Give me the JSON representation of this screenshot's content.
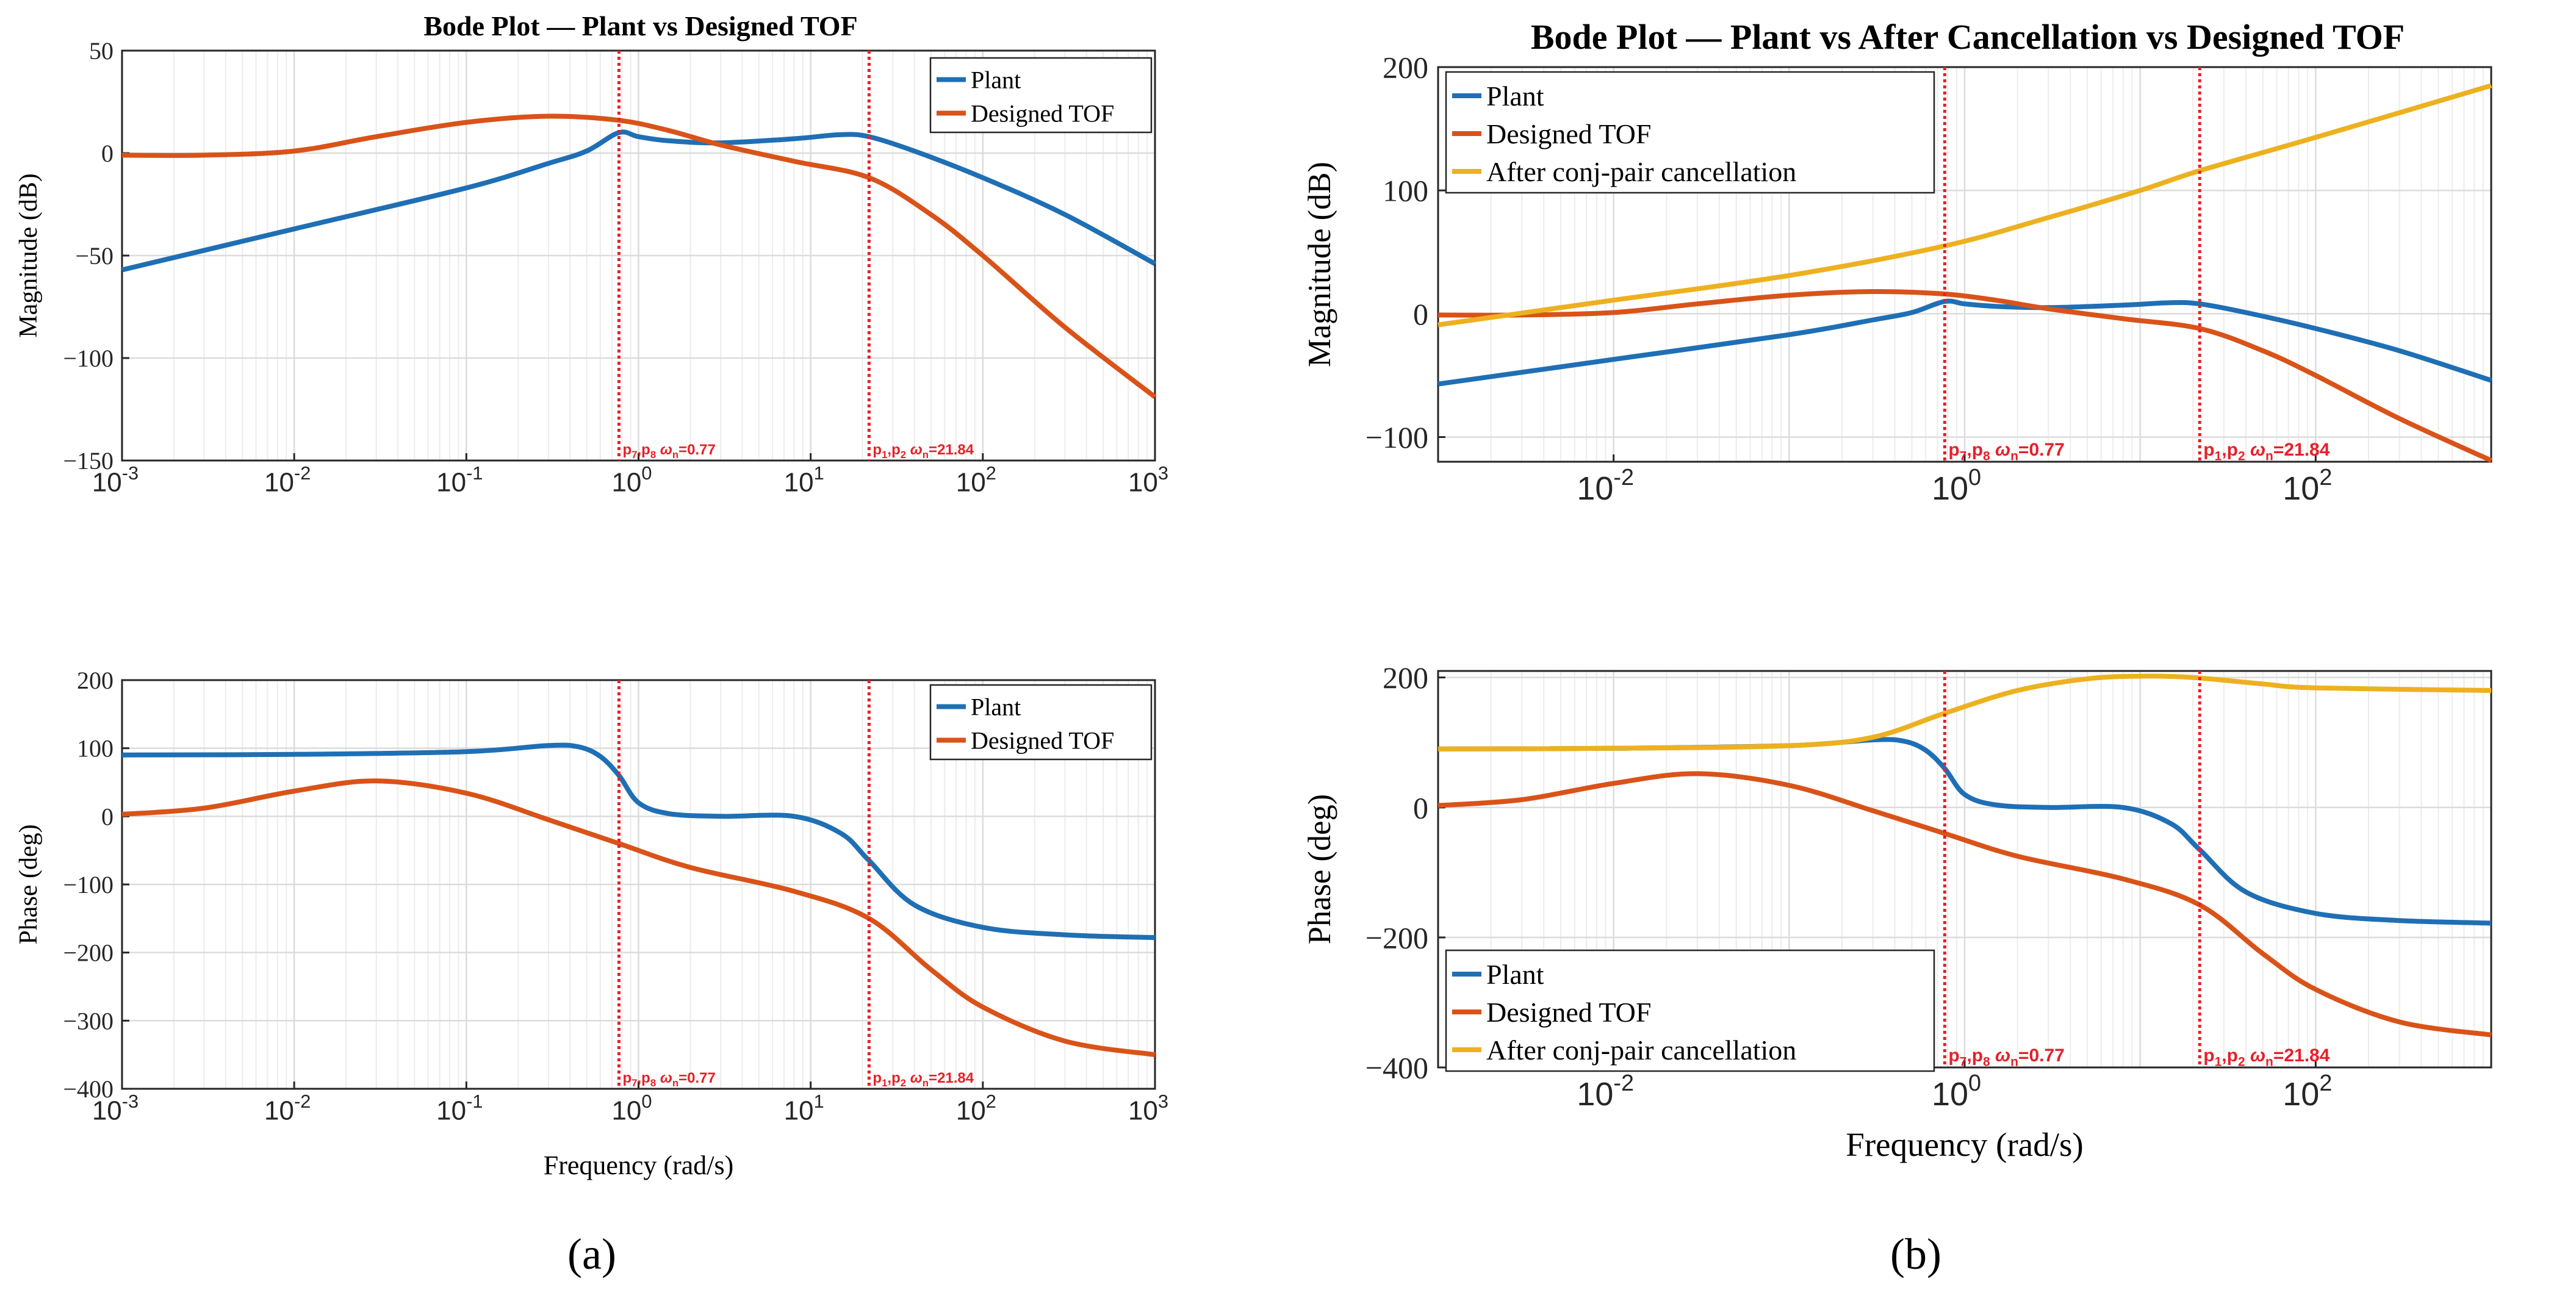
{
  "figure": {
    "label_a": "(a)",
    "label_b": "(b)"
  },
  "colors": {
    "plant": "#1f6fb5",
    "tof": "#d95319",
    "after": "#edb120",
    "marker": "#e8202a"
  },
  "chart_data": [
    {
      "id": "a_mag",
      "type": "line",
      "title": "Bode Plot — Plant vs Designed TOF",
      "xlabel": "",
      "ylabel": "Magnitude (dB)",
      "xscale": "log",
      "xlim": [
        0.001,
        1000
      ],
      "ylim": [
        -150,
        50
      ],
      "yticks": [
        50,
        0,
        -50,
        -100,
        -150
      ],
      "xticks": [
        "10^-3",
        "10^-2",
        "10^-1",
        "10^0",
        "10^1",
        "10^2",
        "10^3"
      ],
      "grid": true,
      "legend": "top-right",
      "markers": [
        {
          "x": 0.77,
          "label_sub": [
            "p",
            "7",
            ",p",
            "8",
            "  ω",
            "n",
            "=0.77"
          ]
        },
        {
          "x": 21.84,
          "label_sub": [
            "p",
            "1",
            ",p",
            "2",
            "  ω",
            "n",
            "=21.84"
          ]
        }
      ],
      "series": [
        {
          "name": "Plant",
          "color_key": "plant",
          "x": [
            0.001,
            0.01,
            0.1,
            0.3,
            0.5,
            0.77,
            1.0,
            1.5,
            3,
            8,
            15,
            21.84,
            40,
            100,
            300,
            1000
          ],
          "y": [
            -57,
            -37,
            -17,
            -5,
            1,
            10,
            8,
            6,
            5,
            7,
            9,
            8,
            1,
            -12,
            -30,
            -54
          ]
        },
        {
          "name": "Designed TOF",
          "color_key": "tof",
          "x": [
            0.001,
            0.003,
            0.01,
            0.03,
            0.1,
            0.3,
            0.77,
            1.5,
            3,
            8,
            21.84,
            50,
            100,
            300,
            1000
          ],
          "y": [
            -1,
            -1,
            1,
            8,
            15,
            18,
            16,
            11,
            4,
            -4,
            -12,
            -30,
            -50,
            -85,
            -119
          ]
        }
      ]
    },
    {
      "id": "a_phase",
      "type": "line",
      "title": "",
      "xlabel": "Frequency (rad/s)",
      "ylabel": "Phase (deg)",
      "xscale": "log",
      "xlim": [
        0.001,
        1000
      ],
      "ylim": [
        -400,
        200
      ],
      "yticks": [
        200,
        100,
        0,
        -100,
        -200,
        -300,
        -400
      ],
      "xticks": [
        "10^-3",
        "10^-2",
        "10^-1",
        "10^0",
        "10^1",
        "10^2",
        "10^3"
      ],
      "grid": true,
      "legend": "top-right",
      "markers": [
        {
          "x": 0.77,
          "label_sub": [
            "p",
            "7",
            ",p",
            "8",
            "  ω",
            "n",
            "=0.77"
          ]
        },
        {
          "x": 21.84,
          "label_sub": [
            "p",
            "1",
            ",p",
            "2",
            "  ω",
            "n",
            "=21.84"
          ]
        }
      ],
      "series": [
        {
          "name": "Plant",
          "color_key": "plant",
          "x": [
            0.001,
            0.01,
            0.1,
            0.3,
            0.45,
            0.6,
            0.77,
            1.0,
            1.5,
            3,
            8,
            15,
            21.84,
            40,
            100,
            300,
            1000
          ],
          "y": [
            90,
            91,
            95,
            104,
            102,
            88,
            60,
            20,
            4,
            0,
            0,
            -25,
            -65,
            -130,
            -163,
            -174,
            -178
          ]
        },
        {
          "name": "Designed TOF",
          "color_key": "tof",
          "x": [
            0.001,
            0.003,
            0.01,
            0.03,
            0.1,
            0.3,
            0.77,
            2,
            8,
            21.84,
            50,
            100,
            300,
            1000
          ],
          "y": [
            3,
            12,
            37,
            52,
            34,
            -5,
            -40,
            -75,
            -110,
            -150,
            -225,
            -280,
            -330,
            -350
          ]
        }
      ]
    },
    {
      "id": "b_mag",
      "type": "line",
      "title": "Bode Plot — Plant vs After Cancellation vs Designed TOF",
      "xlabel": "",
      "ylabel": "Magnitude (dB)",
      "xscale": "log",
      "xlim": [
        0.001,
        1000
      ],
      "ylim": [
        -120,
        200
      ],
      "yticks": [
        200,
        100,
        0,
        -100
      ],
      "xticks": [
        "10^-2",
        "10^0",
        "10^2"
      ],
      "grid": true,
      "legend": "top-left",
      "markers": [
        {
          "x": 0.77,
          "label_sub": [
            "p",
            "7",
            ",p",
            "8",
            "  ω",
            "n",
            "=0.77"
          ]
        },
        {
          "x": 21.84,
          "label_sub": [
            "p",
            "1",
            ",p",
            "2",
            "  ω",
            "n",
            "=21.84"
          ]
        }
      ],
      "series": [
        {
          "name": "Plant",
          "color_key": "plant",
          "x": [
            0.001,
            0.01,
            0.1,
            0.3,
            0.5,
            0.77,
            1.0,
            1.5,
            3,
            8,
            15,
            21.84,
            40,
            100,
            300,
            1000
          ],
          "y": [
            -57,
            -37,
            -17,
            -5,
            1,
            10,
            8,
            6,
            5,
            7,
            9,
            8,
            1,
            -12,
            -30,
            -54
          ]
        },
        {
          "name": "Designed TOF",
          "color_key": "tof",
          "x": [
            0.001,
            0.003,
            0.01,
            0.03,
            0.1,
            0.3,
            0.77,
            1.5,
            3,
            8,
            21.84,
            50,
            100,
            300,
            1000
          ],
          "y": [
            -1,
            -1,
            1,
            8,
            15,
            18,
            16,
            11,
            4,
            -4,
            -12,
            -30,
            -50,
            -85,
            -119
          ]
        },
        {
          "name": "After conj-pair cancellation",
          "color_key": "after",
          "x": [
            0.001,
            0.01,
            0.1,
            0.77,
            3,
            10,
            21.84,
            100,
            1000
          ],
          "y": [
            -9,
            11,
            31,
            55,
            78,
            100,
            116,
            143,
            185
          ]
        }
      ]
    },
    {
      "id": "b_phase",
      "type": "line",
      "title": "",
      "xlabel": "Frequency (rad/s)",
      "ylabel": "Phase (deg)",
      "xscale": "log",
      "xlim": [
        0.001,
        1000
      ],
      "ylim": [
        -400,
        210
      ],
      "yticks": [
        200,
        0,
        -200,
        -400
      ],
      "xticks": [
        "10^-2",
        "10^0",
        "10^2"
      ],
      "grid": true,
      "legend": "bottom-left",
      "markers": [
        {
          "x": 0.77,
          "label_sub": [
            "p",
            "7",
            ",p",
            "8",
            "  ω",
            "n",
            "=0.77"
          ]
        },
        {
          "x": 21.84,
          "label_sub": [
            "p",
            "1",
            ",p",
            "2",
            "  ω",
            "n",
            "=21.84"
          ]
        }
      ],
      "series": [
        {
          "name": "Plant",
          "color_key": "plant",
          "x": [
            0.001,
            0.01,
            0.1,
            0.3,
            0.45,
            0.6,
            0.77,
            1.0,
            1.5,
            3,
            8,
            15,
            21.84,
            40,
            100,
            300,
            1000
          ],
          "y": [
            90,
            91,
            95,
            104,
            102,
            88,
            60,
            20,
            4,
            0,
            0,
            -25,
            -65,
            -130,
            -163,
            -174,
            -178
          ]
        },
        {
          "name": "Designed TOF",
          "color_key": "tof",
          "x": [
            0.001,
            0.003,
            0.01,
            0.03,
            0.1,
            0.3,
            0.77,
            2,
            8,
            21.84,
            50,
            100,
            300,
            1000
          ],
          "y": [
            3,
            12,
            37,
            52,
            34,
            -5,
            -40,
            -75,
            -110,
            -150,
            -225,
            -280,
            -330,
            -350
          ]
        },
        {
          "name": "After conj-pair cancellation",
          "color_key": "after",
          "x": [
            0.001,
            0.01,
            0.1,
            0.3,
            0.77,
            2,
            5,
            10,
            20,
            50,
            100,
            1000
          ],
          "y": [
            90,
            91,
            95,
            108,
            145,
            180,
            198,
            202,
            200,
            190,
            184,
            180
          ]
        }
      ]
    }
  ]
}
